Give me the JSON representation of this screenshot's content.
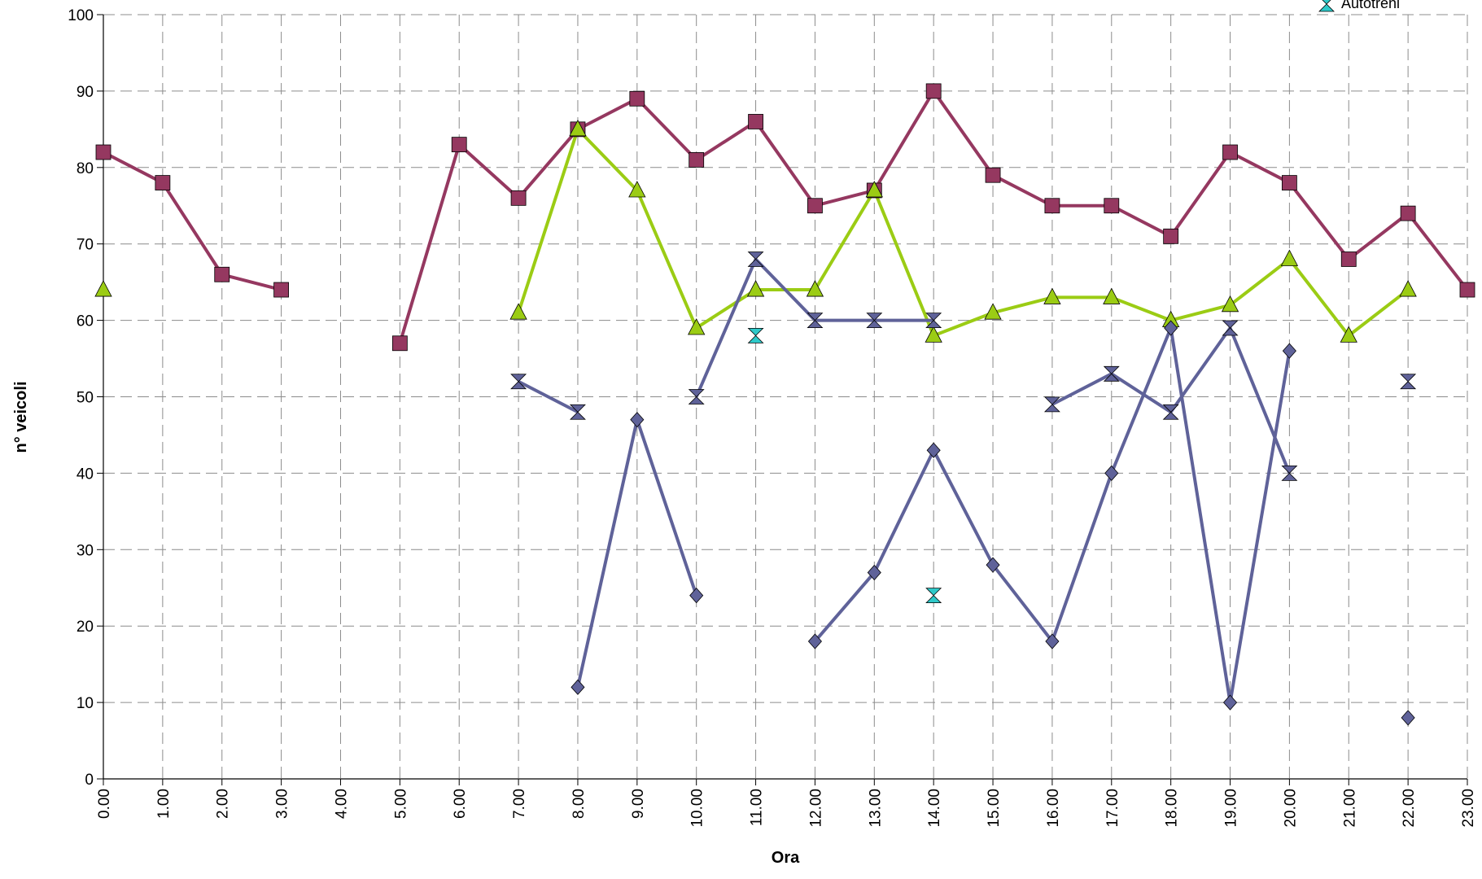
{
  "chart_data": {
    "type": "line",
    "xlabel": "Ora",
    "ylabel": "n° veicoli",
    "ylim": [
      0,
      100
    ],
    "y_ticks": [
      "0",
      "10",
      "20",
      "30",
      "40",
      "50",
      "60",
      "70",
      "80",
      "90",
      "100"
    ],
    "categories": [
      "0.00",
      "1.00",
      "2.00",
      "3.00",
      "4.00",
      "5.00",
      "6.00",
      "7.00",
      "8.00",
      "9.00",
      "10.00",
      "11.00",
      "12.00",
      "13.00",
      "14.00",
      "15.00",
      "16.00",
      "17.00",
      "18.00",
      "19.00",
      "20.00",
      "21.00",
      "22.00",
      "23.00"
    ],
    "grid": true,
    "legend_position": "top-right",
    "series": [
      {
        "key": "s_maroon",
        "color": "#953860",
        "marker": "square",
        "values": [
          82,
          78,
          66,
          64,
          null,
          57,
          83,
          76,
          85,
          89,
          81,
          86,
          75,
          77,
          90,
          79,
          75,
          75,
          71,
          82,
          78,
          68,
          74,
          64
        ]
      },
      {
        "key": "s_green",
        "color": "#9BCC14",
        "marker": "triangle",
        "values": [
          64,
          null,
          null,
          null,
          null,
          null,
          null,
          61,
          85,
          77,
          59,
          64,
          64,
          77,
          58,
          61,
          63,
          63,
          60,
          62,
          68,
          58,
          64,
          null
        ]
      },
      {
        "key": "s_bowtie",
        "color": "#5F6299",
        "marker": "bowtie",
        "values": [
          null,
          null,
          null,
          null,
          null,
          null,
          null,
          52,
          48,
          null,
          50,
          68,
          60,
          60,
          60,
          null,
          49,
          53,
          48,
          59,
          40,
          null,
          52,
          null
        ]
      },
      {
        "key": "s_diamond",
        "color": "#5F6299",
        "marker": "diamond",
        "values": [
          null,
          null,
          null,
          null,
          null,
          null,
          null,
          null,
          12,
          47,
          24,
          null,
          18,
          27,
          43,
          28,
          18,
          40,
          59,
          10,
          56,
          null,
          8,
          null
        ]
      },
      {
        "name": "Autotreni",
        "color": "#2EC9C9",
        "marker": "hourglass",
        "values": [
          null,
          null,
          null,
          null,
          null,
          null,
          null,
          null,
          null,
          null,
          null,
          58,
          null,
          null,
          24,
          null,
          null,
          null,
          null,
          null,
          null,
          null,
          null,
          null
        ]
      }
    ]
  }
}
